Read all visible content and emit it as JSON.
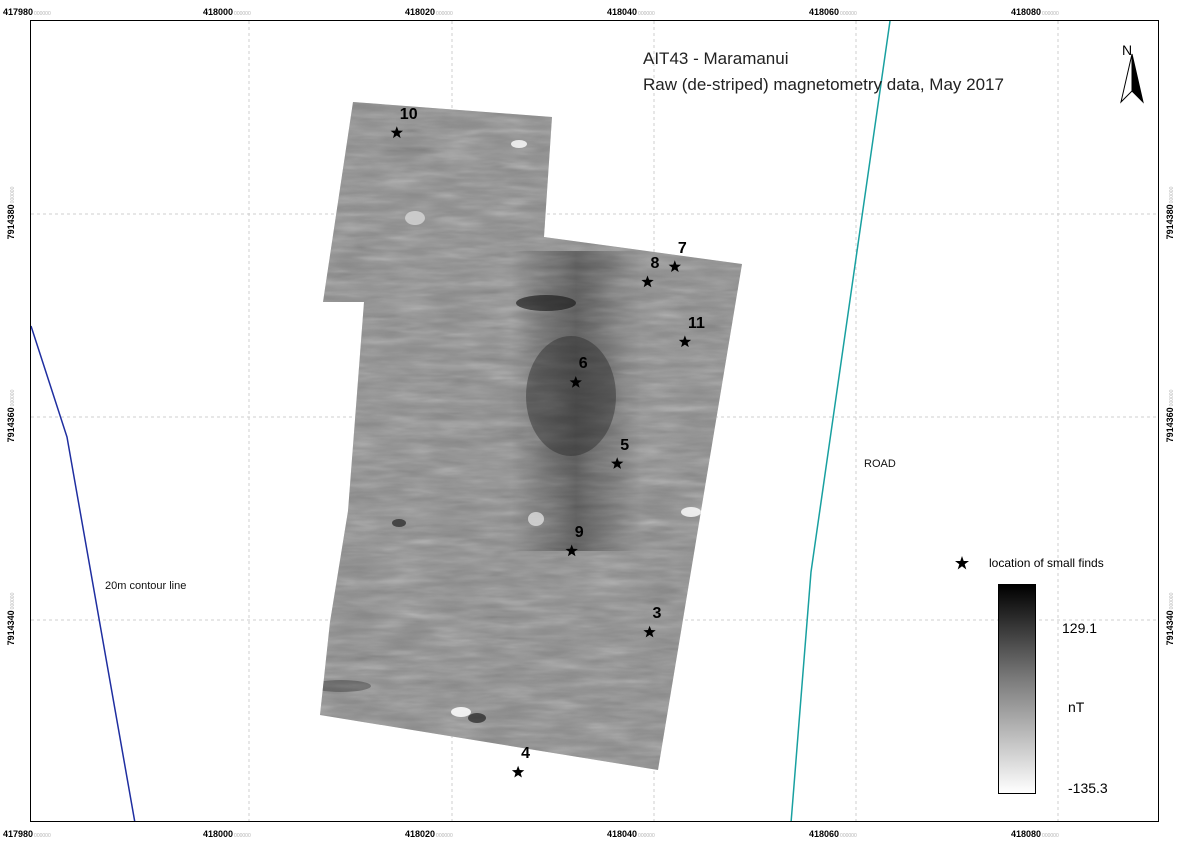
{
  "map": {
    "title": "AIT43 - Maramanui",
    "subtitle": "Raw (de-striped) magnetometry data, May 2017",
    "north_label": "N",
    "road_label": "ROAD",
    "contour_label": "20m contour line",
    "colors": {
      "contour_line": "#1f2ea0",
      "road_line": "#18a0a0",
      "grid_line": "#cfcfcf",
      "frame": "#000000"
    }
  },
  "axes": {
    "easting_labels": [
      {
        "major": "417980",
        "minor": "000000"
      },
      {
        "major": "418000",
        "minor": "000000"
      },
      {
        "major": "418020",
        "minor": "000000"
      },
      {
        "major": "418040",
        "minor": "000000"
      },
      {
        "major": "418060",
        "minor": "000000"
      },
      {
        "major": "418080",
        "minor": "000000"
      }
    ],
    "northing_labels": [
      {
        "major": "7914380",
        "minor": "000000"
      },
      {
        "major": "7914360",
        "minor": "000000"
      },
      {
        "major": "7914340",
        "minor": "000000"
      }
    ]
  },
  "finds": [
    {
      "label": "10",
      "easting": 418014.6,
      "northing": 7914388.0
    },
    {
      "label": "7",
      "easting": 418042.1,
      "northing": 7914374.8
    },
    {
      "label": "8",
      "easting": 418039.4,
      "northing": 7914373.3
    },
    {
      "label": "11",
      "easting": 418043.1,
      "northing": 7914367.4
    },
    {
      "label": "6",
      "easting": 418032.3,
      "northing": 7914363.4
    },
    {
      "label": "5",
      "easting": 418036.4,
      "northing": 7914355.4
    },
    {
      "label": "9",
      "easting": 418031.9,
      "northing": 7914346.8
    },
    {
      "label": "3",
      "easting": 418039.6,
      "northing": 7914338.8
    },
    {
      "label": "4",
      "easting": 418026.6,
      "northing": 7914325.0
    }
  ],
  "legend": {
    "finds_label": "location of small finds",
    "max_value": "129.1",
    "unit": "nT",
    "min_value": "-135.3"
  }
}
